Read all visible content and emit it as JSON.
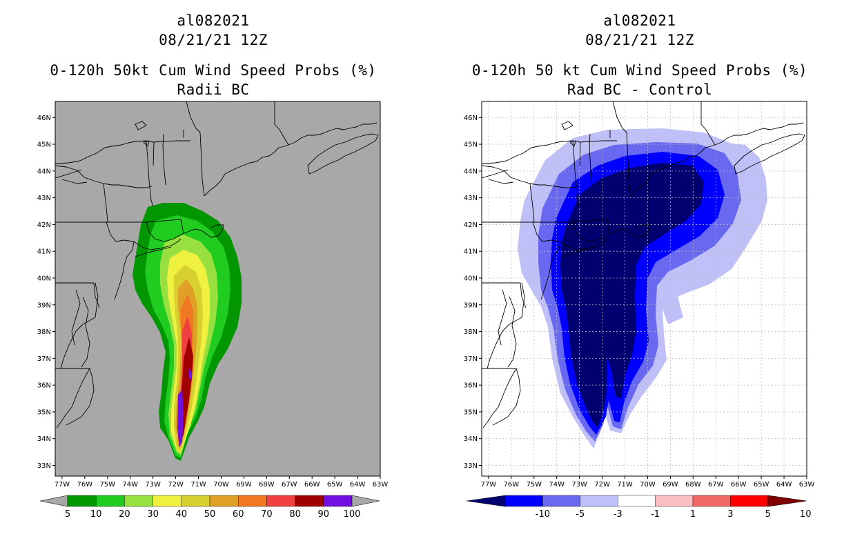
{
  "left": {
    "title_line1": "al082021",
    "title_line2": "08/21/21 12Z",
    "title_line3": "0-120h 50kt Cum Wind Speed Probs (%)",
    "title_line4": "Radii BC",
    "background": "#a8a8a8",
    "colorbar": {
      "labels": [
        "5",
        "10",
        "20",
        "30",
        "40",
        "50",
        "60",
        "70",
        "80",
        "90",
        "100"
      ],
      "colors": [
        "#029602",
        "#20cc20",
        "#98e040",
        "#f0f040",
        "#d8d030",
        "#e0a028",
        "#f07820",
        "#f04040",
        "#a00000",
        "#7010e0"
      ]
    }
  },
  "right": {
    "title_line1": "al082021",
    "title_line2": "08/21/21 12Z",
    "title_line3": "0-120h 50 kt Cum Wind Speed Probs (%)",
    "title_line4": "Rad BC - Control",
    "background": "#ffffff",
    "colorbar": {
      "labels": [
        "-10",
        "-5",
        "-3",
        "-1",
        "1",
        "3",
        "5",
        "10"
      ],
      "colors": [
        "#000070",
        "#0000ff",
        "#6868f0",
        "#c0c0f8",
        "#ffffff",
        "#f8c0c0",
        "#f06868",
        "#ff0000",
        "#800000"
      ]
    }
  },
  "axes": {
    "lat_labels": [
      "46N",
      "45N",
      "44N",
      "43N",
      "42N",
      "41N",
      "40N",
      "39N",
      "38N",
      "37N",
      "36N",
      "35N",
      "34N",
      "33N"
    ],
    "lon_labels": [
      "77W",
      "76W",
      "75W",
      "74W",
      "73W",
      "72W",
      "71W",
      "70W",
      "69W",
      "68W",
      "67W",
      "66W",
      "65W",
      "64W",
      "63W"
    ]
  }
}
